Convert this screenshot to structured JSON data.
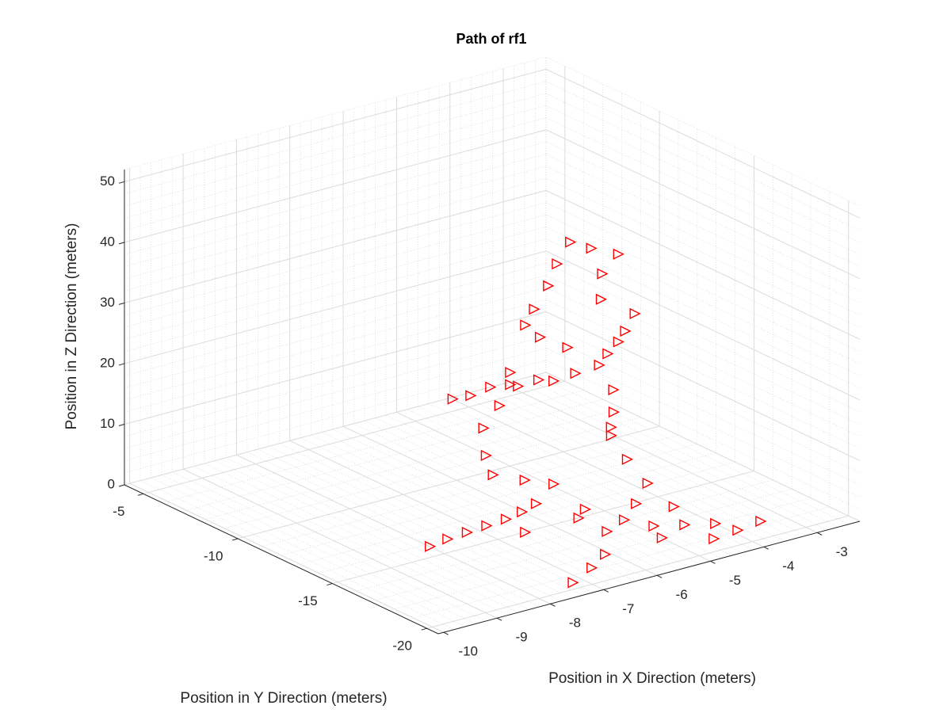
{
  "chart_data": {
    "type": "scatter3",
    "title": "Path of rf1",
    "xlabel": "Position in X Direction (meters)",
    "ylabel": "Position in Y Direction (meters)",
    "zlabel": "Position in Z Direction (meters)",
    "color": "#ff0000",
    "marker": ">",
    "grid": true,
    "minor_grid": true,
    "xlim": [
      -10.1,
      -2.2
    ],
    "ylim": [
      -20.6,
      -4
    ],
    "zlim": [
      0,
      52
    ],
    "xticks": [
      -10,
      -9,
      -8,
      -7,
      -6,
      -5,
      -4,
      -3
    ],
    "yticks": [
      -20,
      -15,
      -10,
      -5
    ],
    "zticks": [
      0,
      10,
      20,
      30,
      40,
      50
    ],
    "x": [
      -8.0,
      -7.6,
      -7.2,
      -6.8,
      -6.4,
      -6.1,
      -5.8,
      -5.4,
      -5.8,
      -6.2,
      -6.1,
      -5.9,
      -5.6,
      -5.4,
      -5.4,
      -5.7,
      -6.0,
      -6.3,
      -5.5,
      -5.4,
      -5.4,
      -5.1,
      -4.76,
      -4.6,
      -4.7,
      -4.5,
      -4.25,
      -4.2,
      -4.1,
      -4.07,
      -4.4,
      -4.4,
      -3.9,
      -3.4,
      -4.0,
      -5.0,
      -6.1,
      -6.6,
      -7.2,
      -5.4,
      -5.2,
      -4.9,
      -4.7,
      -4.45,
      -4.2,
      -3.87,
      -4.1,
      -4.3,
      -3.95,
      -4.2,
      -4.4,
      -4.6,
      -5.0,
      -5.3,
      -5.5,
      -5.0,
      -4.8,
      -5.5,
      -6.5,
      -5.2,
      -4.6
    ],
    "y": [
      -14.2,
      -14.0,
      -13.9,
      -13.8,
      -13.7,
      -13.7,
      -13.6,
      -13.4,
      -13.0,
      -12.45,
      -11.8,
      -11.1,
      -11.1,
      -11.1,
      -11.1,
      -10.9,
      -10.7,
      -10.6,
      -11.8,
      -12.6,
      -13.4,
      -13.7,
      -14.0,
      -14.3,
      -14.6,
      -13.9,
      -13.2,
      -13.9,
      -14.7,
      -16.0,
      -17.5,
      -19.05,
      -18.9,
      -18.7,
      -18.0,
      -18.0,
      -18.1,
      -18.8,
      -19.5,
      -11.9,
      -11.8,
      -11.7,
      -11.6,
      -11.6,
      -12.0,
      -12.5,
      -12.3,
      -12.8,
      -13.6,
      -13.8,
      -14.0,
      -14.0,
      -13.0,
      -12.4,
      -15.0,
      -16.0,
      -17.0,
      -16.5,
      -15.0,
      -14.5,
      -15.5
    ],
    "z": [
      0,
      0,
      0,
      0,
      0,
      0.5,
      1,
      3,
      4,
      5,
      7,
      10,
      13,
      16,
      18,
      16,
      15,
      15,
      17,
      19,
      20,
      21,
      22,
      18,
      15,
      11,
      8,
      5,
      2,
      0,
      0,
      0,
      0,
      0,
      0,
      0,
      0,
      0,
      0,
      27,
      29,
      32,
      35,
      38,
      37,
      36,
      33,
      30,
      28,
      26,
      25,
      23.5,
      24,
      25.5,
      0,
      0,
      0,
      0,
      0,
      0,
      1
    ]
  }
}
